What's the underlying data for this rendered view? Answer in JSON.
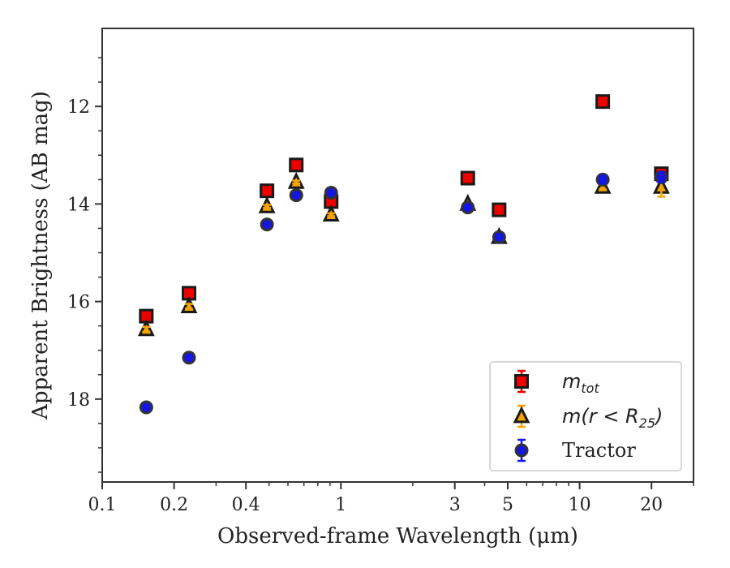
{
  "chart_data": {
    "type": "scatter",
    "title": "",
    "xlabel": "Observed-frame Wavelength (μm)",
    "ylabel": "Apparent Brightness (AB mag)",
    "x_scale": "log",
    "xlim": [
      0.1,
      30
    ],
    "ylim": [
      19.7,
      10.4
    ],
    "y_inverted": true,
    "x_ticks": [
      0.1,
      0.2,
      0.4,
      1,
      3,
      5,
      10,
      20
    ],
    "x_tick_labels": [
      "0.1",
      "0.2",
      "0.4",
      "1",
      "3",
      "5",
      "10",
      "20"
    ],
    "y_ticks": [
      12,
      14,
      16,
      18
    ],
    "y_tick_labels": [
      "12",
      "14",
      "16",
      "18"
    ],
    "grid": false,
    "legend_position": "bottom-right",
    "series": [
      {
        "name_main": "m",
        "name_sub": "tot",
        "marker": "square",
        "face_color": "#ee0000",
        "edge_color": "#1a1a1a",
        "error_color": "#ee0000",
        "x": [
          0.153,
          0.231,
          0.49,
          0.65,
          0.91,
          3.4,
          4.6,
          12.5,
          22.0
        ],
        "y": [
          16.3,
          15.83,
          13.73,
          13.2,
          13.95,
          13.47,
          14.12,
          11.9,
          13.38
        ],
        "yerr": [
          0.05,
          0.05,
          0.03,
          0.03,
          0.03,
          0.03,
          0.03,
          0.03,
          0.05
        ]
      },
      {
        "name_main": "m(r < R",
        "name_sub": "25",
        "name_end": ")",
        "marker": "triangle",
        "face_color": "#f5a300",
        "edge_color": "#1a1a1a",
        "error_color": "#f5a300",
        "x": [
          0.153,
          0.231,
          0.49,
          0.65,
          0.91,
          3.4,
          4.6,
          12.5,
          22.0
        ],
        "y": [
          16.57,
          16.1,
          14.05,
          13.55,
          14.22,
          14.0,
          14.68,
          13.65,
          13.65
        ],
        "yerr": [
          0.05,
          0.05,
          0.03,
          0.03,
          0.03,
          0.03,
          0.03,
          0.05,
          0.2
        ]
      },
      {
        "name": "Tractor",
        "marker": "circle",
        "face_color": "#1515e6",
        "edge_color": "#333333",
        "error_color": "#1515e6",
        "x": [
          0.153,
          0.231,
          0.49,
          0.65,
          0.91,
          3.4,
          4.6,
          12.5,
          22.0
        ],
        "y": [
          18.17,
          17.15,
          14.42,
          13.82,
          13.77,
          14.07,
          14.68,
          13.5,
          13.45
        ],
        "yerr": [
          0.05,
          0.05,
          0.03,
          0.03,
          0.03,
          0.03,
          0.05,
          0.08,
          0.1
        ]
      }
    ]
  }
}
